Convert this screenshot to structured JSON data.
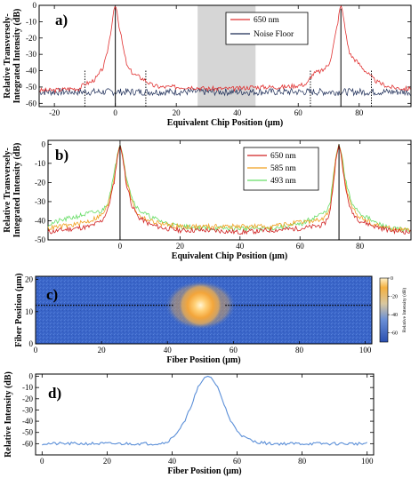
{
  "chart_data": [
    {
      "panel": "a)",
      "type": "line",
      "xlabel": "Equivalent Chip Position (μm)",
      "ylabel": "Relative Transversely-Integrated Intensity (dB)",
      "xlim": [
        -25,
        97
      ],
      "ylim": [
        -62,
        0
      ],
      "xticks": [
        -20,
        0,
        20,
        40,
        60,
        80
      ],
      "yticks": [
        0,
        -10,
        -20,
        -30,
        -40,
        -50,
        -60
      ],
      "shaded_region": [
        27,
        46
      ],
      "vertical_lines_solid": [
        0,
        74
      ],
      "vertical_lines_dotted": [
        -10,
        10,
        64,
        84
      ],
      "legend": "top-right",
      "series": [
        {
          "name": "650 nm",
          "color": "#e03030",
          "x": [
            -25,
            -20,
            -15,
            -12,
            -10,
            -8,
            -6,
            -4,
            -3,
            -2,
            -1,
            -0.5,
            0,
            0.5,
            1,
            2,
            3,
            4,
            6,
            8,
            10,
            12,
            15,
            20,
            25,
            30,
            35,
            40,
            45,
            50,
            55,
            60,
            63,
            64,
            65,
            66,
            68,
            70,
            71,
            72,
            73,
            73.5,
            74,
            74.5,
            75,
            76,
            77,
            78,
            80,
            82,
            84,
            86,
            90,
            95,
            97
          ],
          "y": [
            -52,
            -52,
            -51,
            -51,
            -48,
            -47,
            -44,
            -38,
            -32,
            -22,
            -10,
            -3,
            0,
            -3,
            -10,
            -20,
            -30,
            -38,
            -42,
            -44,
            -46,
            -49,
            -50,
            -50,
            -50,
            -51,
            -51,
            -51,
            -50,
            -50,
            -50,
            -49,
            -48,
            -44,
            -42,
            -41,
            -40,
            -36,
            -30,
            -20,
            -10,
            -3,
            0,
            -3,
            -10,
            -22,
            -30,
            -32,
            -36,
            -40,
            -44,
            -47,
            -50,
            -51,
            -51
          ]
        },
        {
          "name": "Noise Floor",
          "color": "#1a2a55",
          "x": [
            -25,
            97
          ],
          "y": [
            -53,
            -53
          ]
        }
      ]
    },
    {
      "panel": "b)",
      "type": "line",
      "xlabel": "Equivalent Chip Position (μm)",
      "ylabel": "Relative Transversely-Integrated Intensity (dB)",
      "xlim": [
        -24,
        97
      ],
      "ylim": [
        -50,
        2
      ],
      "xticks": [
        0,
        20,
        40,
        60,
        80
      ],
      "yticks": [
        0,
        -10,
        -20,
        -30,
        -40,
        -50
      ],
      "vertical_lines_solid": [
        0,
        73
      ],
      "legend": "top-right",
      "series": [
        {
          "name": "650 nm",
          "color": "#d02020",
          "x": [
            -24,
            -20,
            -15,
            -10,
            -6,
            -4,
            -2,
            -1,
            0,
            1,
            2,
            4,
            6,
            10,
            15,
            20,
            30,
            40,
            50,
            60,
            65,
            68,
            70,
            71,
            72,
            73,
            74,
            75,
            77,
            80,
            85,
            90,
            97
          ],
          "y": [
            -46,
            -45,
            -44,
            -43,
            -40,
            -34,
            -20,
            -8,
            0,
            -8,
            -20,
            -32,
            -38,
            -42,
            -44,
            -45,
            -45,
            -46,
            -45,
            -44,
            -43,
            -42,
            -36,
            -22,
            -8,
            0,
            -8,
            -22,
            -35,
            -40,
            -43,
            -45,
            -46
          ]
        },
        {
          "name": "585 nm",
          "color": "#f0a020",
          "x": [
            -24,
            -20,
            -15,
            -10,
            -6,
            -4,
            -2,
            -1,
            0,
            1,
            2,
            4,
            6,
            10,
            15,
            20,
            30,
            40,
            50,
            60,
            65,
            68,
            70,
            71,
            72,
            73,
            74,
            75,
            77,
            80,
            85,
            90,
            97
          ],
          "y": [
            -44,
            -43,
            -42,
            -40,
            -37,
            -32,
            -18,
            -7,
            0,
            -7,
            -18,
            -30,
            -37,
            -40,
            -42,
            -43,
            -43,
            -43,
            -43,
            -41,
            -40,
            -39,
            -34,
            -20,
            -7,
            0,
            -7,
            -20,
            -33,
            -38,
            -42,
            -44,
            -45
          ]
        },
        {
          "name": "493 nm",
          "color": "#66dd66",
          "x": [
            -24,
            -20,
            -15,
            -10,
            -6,
            -4,
            -2,
            -1,
            0,
            1,
            2,
            4,
            6,
            10,
            15,
            20,
            30,
            40,
            50,
            60,
            65,
            68,
            70,
            71,
            72,
            73,
            74,
            75,
            77,
            80,
            85,
            90,
            97
          ],
          "y": [
            -42,
            -40,
            -38,
            -36,
            -35,
            -30,
            -16,
            -6,
            0,
            -6,
            -16,
            -28,
            -34,
            -38,
            -41,
            -43,
            -44,
            -44,
            -44,
            -42,
            -38,
            -36,
            -32,
            -18,
            -6,
            0,
            -6,
            -18,
            -30,
            -36,
            -41,
            -44,
            -45
          ]
        }
      ]
    },
    {
      "panel": "c)",
      "type": "heatmap",
      "xlabel": "Fiber Position (μm)",
      "ylabel": "Fiber Position (μm)",
      "xlim": [
        0,
        102
      ],
      "ylim": [
        0,
        21
      ],
      "xticks": [
        0,
        20,
        40,
        60,
        80,
        100
      ],
      "yticks": [
        0,
        10,
        20
      ],
      "spot_center": [
        50,
        12
      ],
      "cut_line_y": 12,
      "colorbar": {
        "label": "Relative Intensity (dB)",
        "ticks": [
          0,
          -20,
          -40,
          -60
        ],
        "range": [
          -70,
          0
        ]
      }
    },
    {
      "panel": "d)",
      "type": "line",
      "xlabel": "Fiber Position (μm)",
      "ylabel": "Relative Intensity (dB)",
      "xlim": [
        -2,
        102
      ],
      "ylim": [
        -70,
        2
      ],
      "xticks": [
        0,
        20,
        40,
        60,
        80,
        100
      ],
      "yticks": [
        0,
        -10,
        -20,
        -30,
        -40,
        -50,
        -60
      ],
      "series": [
        {
          "name": "",
          "color": "#5b8fd8",
          "x": [
            0,
            5,
            10,
            15,
            20,
            25,
            30,
            35,
            38,
            40,
            42,
            44,
            46,
            48,
            50,
            51,
            52,
            54,
            56,
            58,
            60,
            62,
            65,
            70,
            75,
            80,
            85,
            90,
            95,
            100
          ],
          "y": [
            -60,
            -60,
            -60,
            -60,
            -60,
            -60,
            -60,
            -60,
            -59,
            -55,
            -48,
            -40,
            -25,
            -10,
            -1,
            0,
            -1,
            -10,
            -25,
            -40,
            -48,
            -54,
            -58,
            -60,
            -60,
            -60,
            -60,
            -60,
            -60,
            -60
          ]
        }
      ]
    }
  ]
}
